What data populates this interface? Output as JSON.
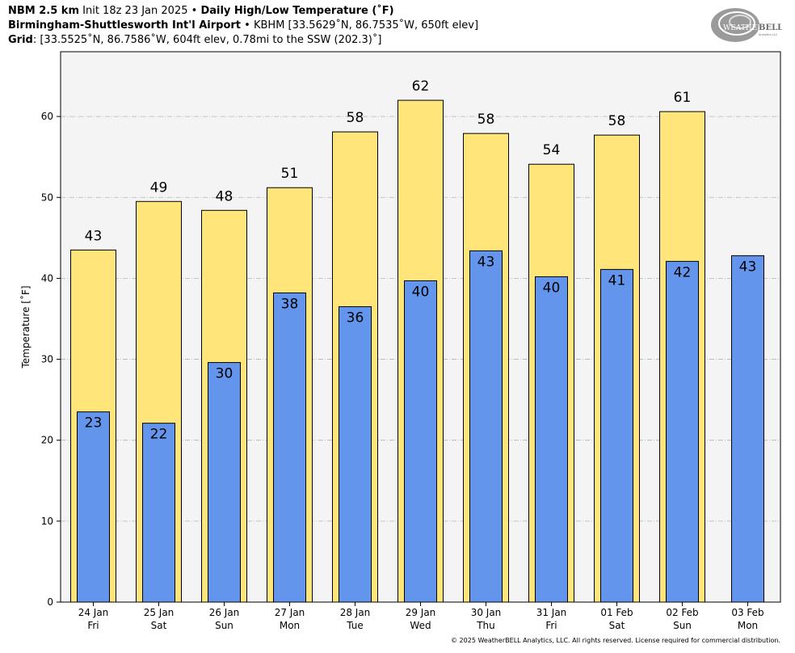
{
  "header": {
    "model": "NBM 2.5 km",
    "init": "Init 18z 23 Jan 2025",
    "bullet": "•",
    "product": "Daily High/Low Temperature (˚F)",
    "station_name": "Birmingham-Shuttlesworth Int'l Airport",
    "station_info": "KBHM [33.5629˚N, 86.7535˚W, 650ft elev]",
    "grid_label": "Grid",
    "grid_info": ": [33.5525˚N, 86.7586˚W, 604ft elev, 0.78mi to the SSW (202.3)˚]"
  },
  "logo": {
    "text_a": "WEATHER",
    "text_b": "BELL",
    "sub": "Analytics LLC"
  },
  "copyright": "© 2025 WeatherBELL Analytics, LLC. All rights reserved. License required for commercial distribution.",
  "chart_data": {
    "type": "bar",
    "ylabel": "Temperature [˚F]",
    "ylim": [
      0,
      68
    ],
    "yticks": [
      0,
      10,
      20,
      30,
      40,
      50,
      60
    ],
    "grid": true,
    "categories": [
      "24 Jan",
      "25 Jan",
      "26 Jan",
      "27 Jan",
      "28 Jan",
      "29 Jan",
      "30 Jan",
      "31 Jan",
      "01 Feb",
      "02 Feb",
      "03 Feb"
    ],
    "weekdays": [
      "Fri",
      "Sat",
      "Sun",
      "Mon",
      "Tue",
      "Wed",
      "Thu",
      "Fri",
      "Sat",
      "Sun",
      "Mon"
    ],
    "series": [
      {
        "name": "High",
        "values": [
          43.5,
          49.5,
          48.4,
          51.2,
          58.1,
          62.0,
          57.9,
          54.1,
          57.7,
          60.6,
          null
        ],
        "labels": [
          "43",
          "49",
          "48",
          "51",
          "58",
          "62",
          "58",
          "54",
          "58",
          "61",
          ""
        ],
        "color": "#ffe57a"
      },
      {
        "name": "Low",
        "values": [
          23.5,
          22.1,
          29.6,
          38.2,
          36.5,
          39.7,
          43.4,
          40.2,
          41.1,
          42.1,
          42.8
        ],
        "labels": [
          "23",
          "22",
          "30",
          "38",
          "36",
          "40",
          "43",
          "40",
          "41",
          "42",
          "43"
        ],
        "color": "#6495ed"
      }
    ],
    "plot_background": "#f4f4f4",
    "grid_color": "#b4b4b4"
  }
}
